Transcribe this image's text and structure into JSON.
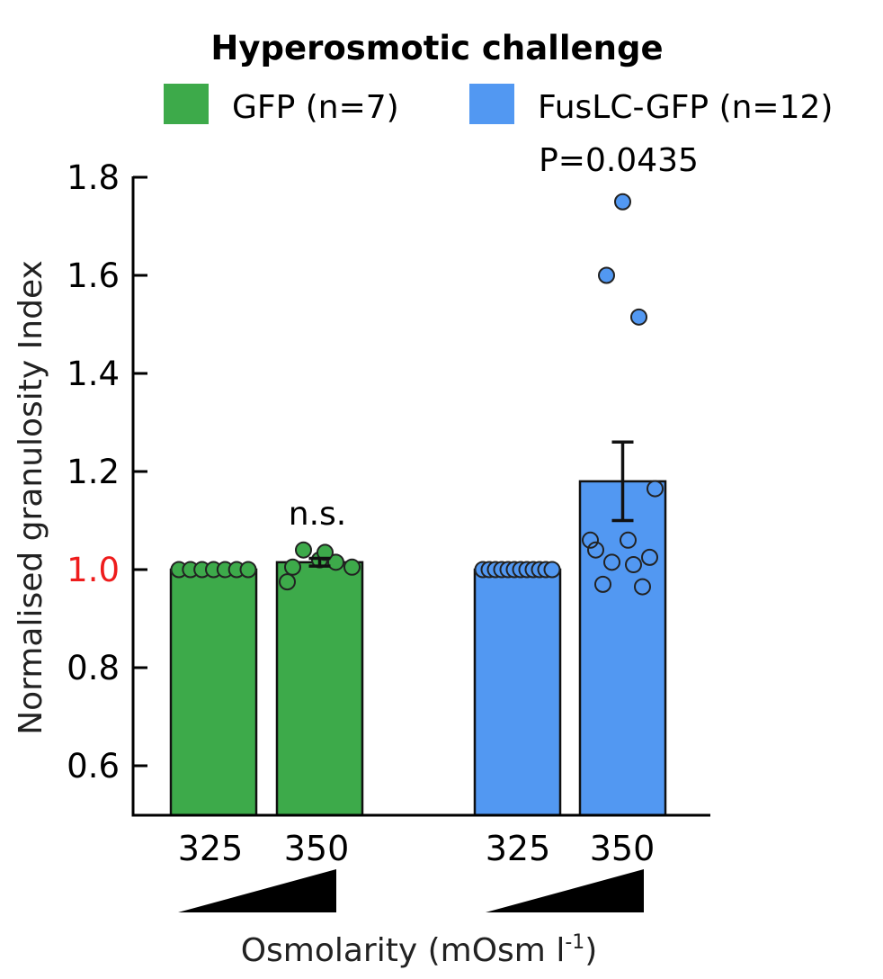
{
  "chart_data": {
    "type": "bar",
    "title": "Hyperosmotic challenge",
    "ylabel": "Normalised granulosity Index",
    "xlabel": "Osmolarity (mOsm l",
    "xlabel_sup": "-1",
    "xlabel_close": ")",
    "ylim": [
      0.5,
      1.8
    ],
    "yticks": [
      0.6,
      0.8,
      1.0,
      1.2,
      1.4,
      1.6,
      1.8
    ],
    "ytick_labels": [
      "0.6",
      "0.8",
      "1.0",
      "1.2",
      "1.4",
      "1.6",
      "1.8"
    ],
    "highlight_tick": "1.0",
    "highlight_color": "#ee1c1c",
    "legend_placement": "top",
    "series": [
      {
        "name": "GFP (n=7)",
        "color": "#3daa4a",
        "categories": [
          "325",
          "350"
        ],
        "values": [
          1.0,
          1.015
        ],
        "errors": [
          0,
          0.008
        ],
        "points": [
          [
            1.0,
            1.0,
            1.0,
            1.0,
            1.0,
            1.0,
            1.0
          ],
          [
            1.02,
            1.04,
            1.015,
            1.005,
            0.975,
            1.035,
            1.005
          ]
        ],
        "annotation": "n.s."
      },
      {
        "name": "FusLC-GFP (n=12)",
        "color": "#5298f2",
        "categories": [
          "325",
          "350"
        ],
        "values": [
          1.0,
          1.18
        ],
        "errors": [
          0,
          0.08
        ],
        "points": [
          [
            1.0,
            1.0,
            1.0,
            1.0,
            1.0,
            1.0,
            1.0,
            1.0,
            1.0,
            1.0,
            1.0,
            1.0
          ],
          [
            1.75,
            1.6,
            1.515,
            1.165,
            1.06,
            1.06,
            1.04,
            1.025,
            1.015,
            1.01,
            0.97,
            0.965
          ]
        ],
        "annotation": "P=0.0435"
      }
    ]
  }
}
